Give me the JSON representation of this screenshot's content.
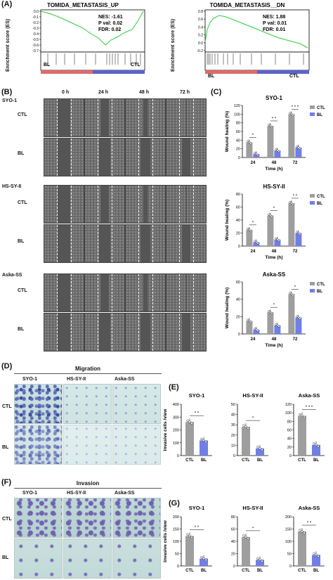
{
  "panels": {
    "A": "(A)",
    "B": "(B)",
    "C": "(C)",
    "D": "(D)",
    "E": "(E)",
    "F": "(F)",
    "G": "(G)"
  },
  "gsea": {
    "ylabel": "Enrichment score (ES)",
    "plots": [
      {
        "title": "TOMIDA_METASTASIS_UP",
        "nes": "NES: -1.61",
        "pval": "P val: 0.02",
        "fdr": "FDR: 0.02",
        "left": "BL",
        "right": "CTL"
      },
      {
        "title": "TOMIDA_METASTASIS__DN",
        "nes": "NES: 1.88",
        "pval": "P val: 0.01",
        "fdr": "FDR: 0.01",
        "left": "BL",
        "right": "CTL"
      }
    ],
    "ticks_up": [
      "0.0",
      "-0.1",
      "-0.2",
      "-0.3",
      "-0.4",
      "-0.5",
      "-0.6",
      "-0.7"
    ],
    "ticks_dn": [
      "0.8",
      "0.6",
      "0.4",
      "0.2",
      "0.0",
      "-0.2"
    ]
  },
  "wound": {
    "times": [
      "0 h",
      "24 h",
      "48 h",
      "72 h"
    ],
    "lines": [
      {
        "name": "SYO-1",
        "rows": [
          "CTL",
          "BL"
        ]
      },
      {
        "name": "HS-SY-II",
        "rows": [
          "CTL",
          "BL"
        ]
      },
      {
        "name": "Aska-SS",
        "rows": [
          "CTL",
          "BL"
        ]
      }
    ]
  },
  "chart_data": [
    {
      "type": "bar",
      "title": "SYO-1",
      "xlabel": "Time (h)",
      "ylabel": "Wound healing (%)",
      "categories": [
        "24",
        "48",
        "72"
      ],
      "ylim": [
        0,
        120
      ],
      "yticks": [
        0,
        20,
        40,
        60,
        80,
        100,
        120
      ],
      "series": [
        {
          "name": "CTL",
          "values": [
            35,
            73,
            100
          ]
        },
        {
          "name": "BL",
          "values": [
            8,
            16,
            23
          ]
        }
      ],
      "significance": [
        "*",
        "* *",
        "* * *"
      ],
      "legend": [
        "CTL",
        "BL"
      ]
    },
    {
      "type": "bar",
      "title": "HS-SY-II",
      "xlabel": "Time (h)",
      "ylabel": "Wound healing (%)",
      "categories": [
        "24",
        "48",
        "72"
      ],
      "ylim": [
        0,
        80
      ],
      "yticks": [
        0,
        20,
        40,
        60,
        80
      ],
      "series": [
        {
          "name": "CTL",
          "values": [
            25,
            47,
            66
          ]
        },
        {
          "name": "BL",
          "values": [
            6,
            10,
            20
          ]
        }
      ],
      "significance": [
        "*",
        "*",
        "* *"
      ],
      "legend": [
        "CTL",
        "BL"
      ]
    },
    {
      "type": "bar",
      "title": "Aska-SS",
      "xlabel": "Time (h)",
      "ylabel": "Wound healing (%)",
      "categories": [
        "24",
        "48",
        "72"
      ],
      "ylim": [
        0,
        60
      ],
      "yticks": [
        0,
        20,
        40,
        60
      ],
      "series": [
        {
          "name": "CTL",
          "values": [
            15,
            25,
            46
          ]
        },
        {
          "name": "BL",
          "values": [
            5,
            10,
            19
          ]
        }
      ],
      "significance": [
        "",
        "*",
        "*"
      ],
      "legend": [
        "CTL",
        "BL"
      ]
    },
    {
      "type": "bar",
      "title": "SYO-1",
      "ylabel": "Invasive cells /view",
      "categories": [
        "CTL",
        "BL"
      ],
      "values": [
        262,
        118
      ],
      "ylim": [
        0,
        400
      ],
      "yticks": [
        0,
        100,
        200,
        300,
        400
      ],
      "significance": "* *"
    },
    {
      "type": "bar",
      "title": "HS-SY-II",
      "ylabel": "",
      "categories": [
        "CTL",
        "BL"
      ],
      "values": [
        28,
        7
      ],
      "ylim": [
        0,
        50
      ],
      "yticks": [
        0,
        10,
        20,
        30,
        40,
        50
      ],
      "significance": "*"
    },
    {
      "type": "bar",
      "title": "Aska-SS",
      "ylabel": "",
      "categories": [
        "CTL",
        "BL"
      ],
      "values": [
        93,
        25
      ],
      "ylim": [
        0,
        120
      ],
      "yticks": [
        0,
        20,
        40,
        60,
        80,
        100,
        120
      ],
      "significance": "* * *"
    },
    {
      "type": "bar",
      "title": "SYO-1",
      "ylabel": "Invasive cells /view",
      "categories": [
        "CTL",
        "BL"
      ],
      "values": [
        122,
        30
      ],
      "ylim": [
        0,
        200
      ],
      "yticks": [
        0,
        50,
        100,
        150,
        200
      ],
      "significance": "* *"
    },
    {
      "type": "bar",
      "title": "HS-SY-II",
      "ylabel": "",
      "categories": [
        "CTL",
        "BL"
      ],
      "values": [
        47,
        10
      ],
      "ylim": [
        0,
        80
      ],
      "yticks": [
        0,
        20,
        40,
        60,
        80
      ],
      "significance": "*"
    },
    {
      "type": "bar",
      "title": "Aska-SS",
      "ylabel": "",
      "categories": [
        "CTL",
        "BL"
      ],
      "values": [
        140,
        45
      ],
      "ylim": [
        0,
        200
      ],
      "yticks": [
        0,
        50,
        100,
        150,
        200
      ],
      "significance": "* *"
    }
  ],
  "micro": {
    "migration_title": "Migration",
    "invasion_title": "Invasion",
    "columns": [
      "SYO-1",
      "HS-SY-II",
      "Aska-SS"
    ],
    "rows": [
      "CTL",
      "BL"
    ]
  },
  "colors": {
    "ctl": "#9e9e9e",
    "bl": "#6f7fe6",
    "gsea_line": "#2ecc40"
  }
}
